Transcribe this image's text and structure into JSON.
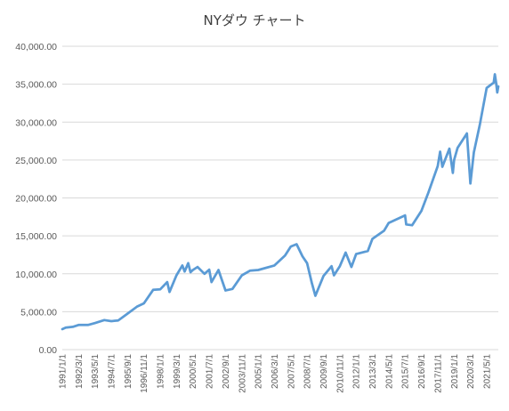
{
  "chart_data": {
    "type": "line",
    "title": "NYダウ チャート",
    "xlabel": "",
    "ylabel": "",
    "ylim": [
      0,
      40000
    ],
    "grid": true,
    "legend": "none",
    "line_color": "#5b9bd5",
    "y_ticks": [
      0,
      5000,
      10000,
      15000,
      20000,
      25000,
      30000,
      35000,
      40000
    ],
    "y_tick_labels": [
      "0.00",
      "5,000.00",
      "10,000.00",
      "15,000.00",
      "20,000.00",
      "25,000.00",
      "30,000.00",
      "35,000.00",
      "40,000.00"
    ],
    "x_tick_labels": [
      "1991/1/1",
      "1992/3/1",
      "1993/5/1",
      "1994/7/1",
      "1995/9/1",
      "1996/11/1",
      "1998/1/1",
      "1999/3/1",
      "2000/5/1",
      "2001/7/1",
      "2002/9/1",
      "2003/11/1",
      "2005/1/1",
      "2006/3/1",
      "2007/5/1",
      "2008/7/1",
      "2009/9/1",
      "2010/11/1",
      "2012/1/1",
      "2013/3/1",
      "2014/5/1",
      "2015/7/1",
      "2016/9/1",
      "2017/11/1",
      "2019/1/1",
      "2020/3/1",
      "2021/5/1"
    ],
    "x_range": [
      "1991/1/1",
      "2022/3/1"
    ],
    "series": [
      {
        "values": [
          {
            "x": "1991/1/1",
            "y": 2700
          },
          {
            "x": "1991/4/1",
            "y": 2900
          },
          {
            "x": "1991/10/1",
            "y": 3000
          },
          {
            "x": "1992/3/1",
            "y": 3250
          },
          {
            "x": "1992/11/1",
            "y": 3250
          },
          {
            "x": "1993/5/1",
            "y": 3500
          },
          {
            "x": "1994/1/1",
            "y": 3900
          },
          {
            "x": "1994/7/1",
            "y": 3750
          },
          {
            "x": "1995/1/1",
            "y": 3850
          },
          {
            "x": "1995/9/1",
            "y": 4750
          },
          {
            "x": "1996/5/1",
            "y": 5650
          },
          {
            "x": "1996/11/1",
            "y": 6100
          },
          {
            "x": "1997/7/1",
            "y": 7900
          },
          {
            "x": "1998/1/1",
            "y": 7950
          },
          {
            "x": "1998/7/1",
            "y": 8900
          },
          {
            "x": "1998/9/1",
            "y": 7600
          },
          {
            "x": "1999/3/1",
            "y": 9800
          },
          {
            "x": "1999/8/1",
            "y": 11100
          },
          {
            "x": "1999/10/1",
            "y": 10300
          },
          {
            "x": "2000/1/1",
            "y": 11400
          },
          {
            "x": "2000/3/1",
            "y": 10200
          },
          {
            "x": "2000/5/1",
            "y": 10500
          },
          {
            "x": "2000/9/1",
            "y": 10900
          },
          {
            "x": "2001/3/1",
            "y": 10000
          },
          {
            "x": "2001/7/1",
            "y": 10550
          },
          {
            "x": "2001/9/1",
            "y": 8900
          },
          {
            "x": "2002/3/1",
            "y": 10500
          },
          {
            "x": "2002/9/1",
            "y": 7800
          },
          {
            "x": "2003/3/1",
            "y": 8000
          },
          {
            "x": "2003/11/1",
            "y": 9800
          },
          {
            "x": "2004/6/1",
            "y": 10400
          },
          {
            "x": "2005/1/1",
            "y": 10500
          },
          {
            "x": "2006/3/1",
            "y": 11100
          },
          {
            "x": "2006/12/1",
            "y": 12400
          },
          {
            "x": "2007/5/1",
            "y": 13600
          },
          {
            "x": "2007/10/1",
            "y": 13900
          },
          {
            "x": "2008/3/1",
            "y": 12300
          },
          {
            "x": "2008/7/1",
            "y": 11400
          },
          {
            "x": "2008/11/1",
            "y": 8800
          },
          {
            "x": "2009/2/1",
            "y": 7100
          },
          {
            "x": "2009/9/1",
            "y": 9700
          },
          {
            "x": "2010/4/1",
            "y": 11000
          },
          {
            "x": "2010/6/1",
            "y": 9800
          },
          {
            "x": "2010/11/1",
            "y": 11000
          },
          {
            "x": "2011/4/1",
            "y": 12800
          },
          {
            "x": "2011/9/1",
            "y": 10900
          },
          {
            "x": "2012/1/1",
            "y": 12600
          },
          {
            "x": "2012/11/1",
            "y": 13000
          },
          {
            "x": "2013/3/1",
            "y": 14600
          },
          {
            "x": "2014/1/1",
            "y": 15700
          },
          {
            "x": "2014/5/1",
            "y": 16700
          },
          {
            "x": "2015/7/1",
            "y": 17700
          },
          {
            "x": "2015/8/1",
            "y": 16500
          },
          {
            "x": "2016/1/1",
            "y": 16400
          },
          {
            "x": "2016/9/1",
            "y": 18300
          },
          {
            "x": "2017/3/1",
            "y": 20700
          },
          {
            "x": "2017/11/1",
            "y": 24200
          },
          {
            "x": "2018/1/1",
            "y": 26100
          },
          {
            "x": "2018/3/1",
            "y": 24100
          },
          {
            "x": "2018/9/1",
            "y": 26500
          },
          {
            "x": "2018/12/1",
            "y": 23300
          },
          {
            "x": "2019/1/1",
            "y": 25000
          },
          {
            "x": "2019/4/1",
            "y": 26600
          },
          {
            "x": "2019/12/1",
            "y": 28500
          },
          {
            "x": "2020/3/1",
            "y": 21900
          },
          {
            "x": "2020/6/1",
            "y": 26000
          },
          {
            "x": "2020/11/1",
            "y": 29600
          },
          {
            "x": "2021/5/1",
            "y": 34500
          },
          {
            "x": "2021/11/1",
            "y": 35200
          },
          {
            "x": "2021/12/1",
            "y": 36300
          },
          {
            "x": "2022/1/1",
            "y": 35200
          },
          {
            "x": "2022/2/1",
            "y": 33900
          },
          {
            "x": "2022/3/1",
            "y": 34700
          }
        ]
      }
    ]
  }
}
